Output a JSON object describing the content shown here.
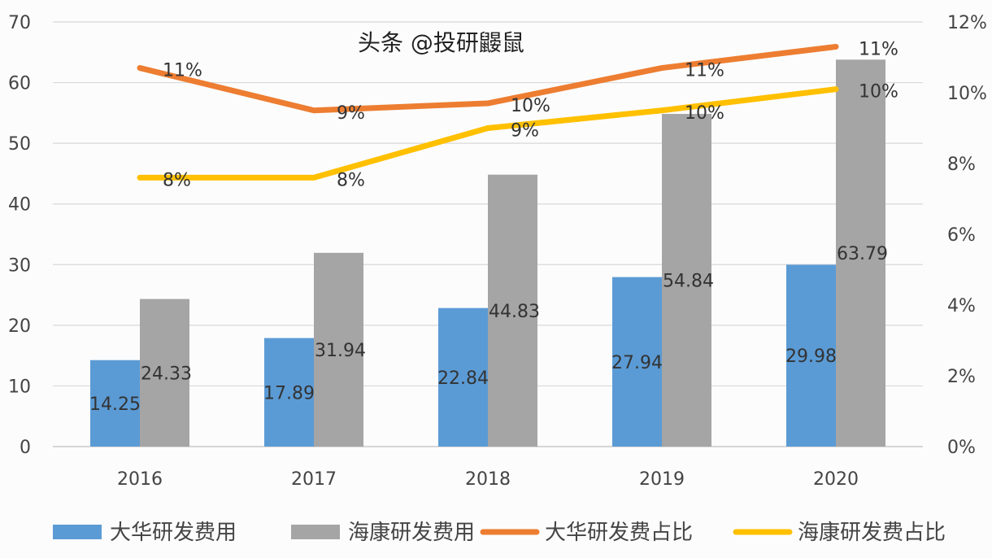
{
  "chart_data": {
    "type": "bar+line",
    "categories": [
      "2016",
      "2017",
      "2018",
      "2019",
      "2020"
    ],
    "left_axis": {
      "range": [
        0,
        70
      ],
      "ticks": [
        "0",
        "10",
        "20",
        "30",
        "40",
        "50",
        "60",
        "70"
      ]
    },
    "right_axis": {
      "range": [
        0,
        12
      ],
      "ticks": [
        "0%",
        "2%",
        "4%",
        "6%",
        "8%",
        "10%",
        "12%"
      ]
    },
    "grid": true,
    "legend_placement": "bottom",
    "series": [
      {
        "name": "大华研发费用",
        "kind": "bar",
        "axis": "left",
        "color": "#5b9bd5",
        "values": [
          14.25,
          17.89,
          22.84,
          27.94,
          29.98
        ],
        "labels": [
          "14.25",
          "17.89",
          "22.84",
          "27.94",
          "29.98"
        ]
      },
      {
        "name": "海康研发费用",
        "kind": "bar",
        "axis": "left",
        "color": "#a5a5a5",
        "values": [
          24.33,
          31.94,
          44.83,
          54.84,
          63.79
        ],
        "labels": [
          "24.33",
          "31.94",
          "44.83",
          "54.84",
          "63.79"
        ]
      },
      {
        "name": "大华研发费占比",
        "kind": "line",
        "axis": "right",
        "color": "#ed7d31",
        "values": [
          10.7,
          9.5,
          9.7,
          10.7,
          11.3
        ],
        "labels": [
          "11%",
          "9%",
          "10%",
          "11%",
          "11%"
        ]
      },
      {
        "name": "海康研发费占比",
        "kind": "line",
        "axis": "right",
        "color": "#ffc000",
        "values": [
          7.6,
          7.6,
          9.0,
          9.5,
          10.1
        ],
        "labels": [
          "8%",
          "8%",
          "9%",
          "10%",
          "10%"
        ]
      }
    ]
  },
  "watermark": "头条 @投研鼹鼠"
}
